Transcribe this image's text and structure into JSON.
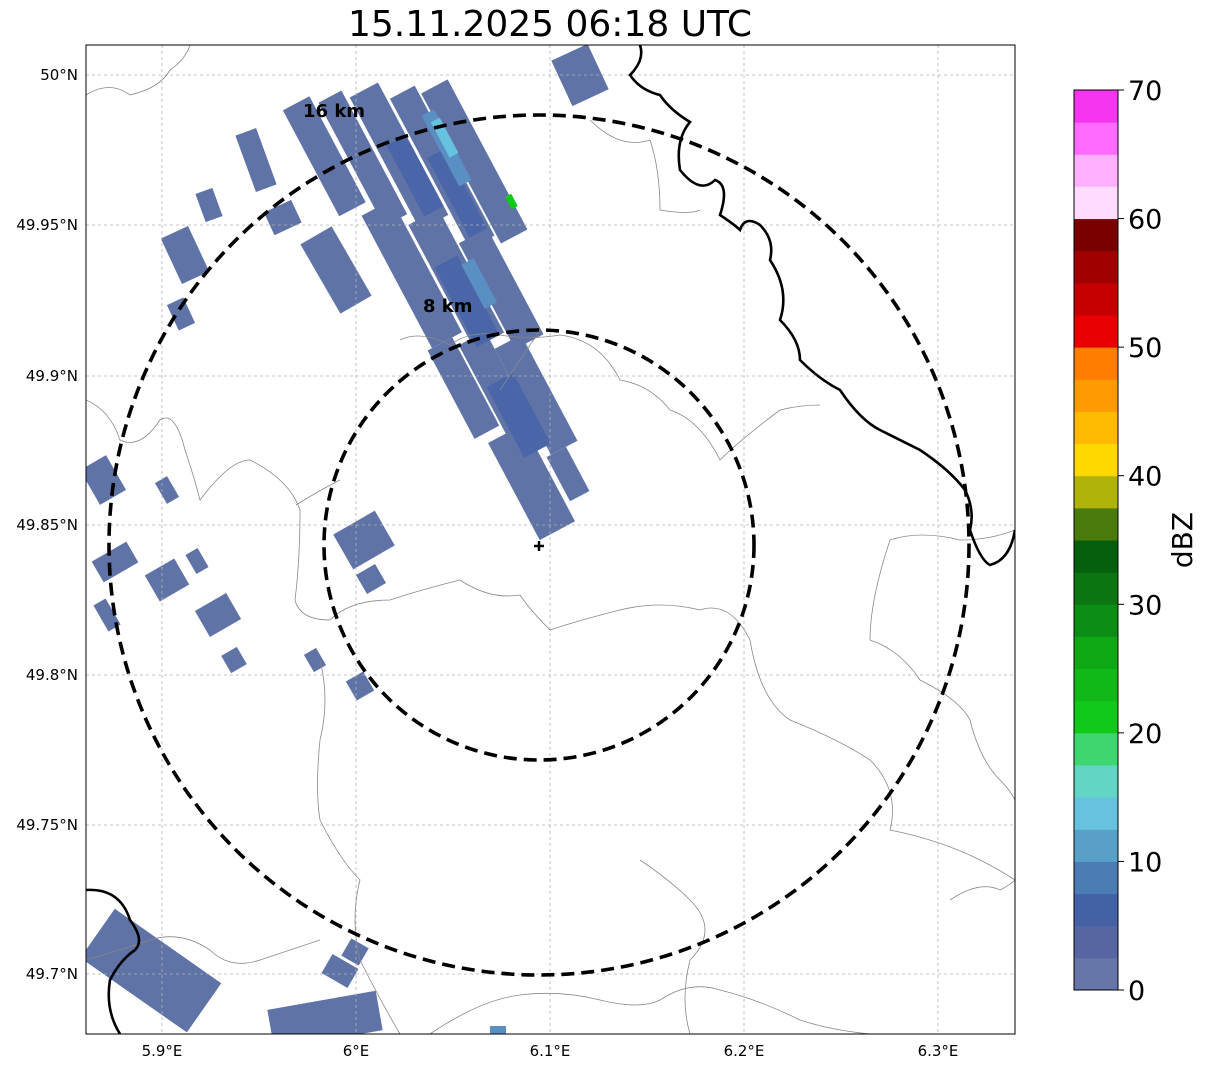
{
  "title": "15.11.2025 06:18 UTC",
  "map": {
    "x_ticks": [
      "5.9°E",
      "6°E",
      "6.1°E",
      "6.2°E",
      "6.3°E"
    ],
    "y_ticks": [
      "50°N",
      "49.95°N",
      "49.9°N",
      "49.85°N",
      "49.8°N",
      "49.75°N",
      "49.7°N"
    ],
    "lon_range": [
      5.86,
      6.34
    ],
    "lat_range": [
      49.68,
      50.01
    ],
    "radar_site": {
      "lon": 6.095,
      "lat": 49.843
    },
    "rings": [
      {
        "label": "8 km",
        "radius_km": 8
      },
      {
        "label": "16 km",
        "radius_km": 16
      }
    ],
    "border_color": "#000000",
    "admin_line_color": "#888888",
    "grid": true
  },
  "colorbar": {
    "label": "dBZ",
    "ticks": [
      "0",
      "10",
      "20",
      "30",
      "40",
      "50",
      "60",
      "70"
    ],
    "colors": [
      "#6676a8",
      "#5566a0",
      "#4461a6",
      "#4b7cb3",
      "#58a0c8",
      "#66c2de",
      "#63d5c5",
      "#3ed66e",
      "#10c918",
      "#10b918",
      "#0fa815",
      "#0c8e15",
      "#0b7512",
      "#055f0c",
      "#4a7a0b",
      "#b1b20a",
      "#ffd800",
      "#ffba00",
      "#ff9b00",
      "#ff7d00",
      "#e80000",
      "#c60000",
      "#a10000",
      "#780000",
      "#ffdcff",
      "#ffb1ff",
      "#ff6bff",
      "#f535f0"
    ]
  },
  "echo_colors": {
    "weak": "#5f73a6",
    "moderate": "#4a66a8",
    "medium": "#5a8fc4",
    "strong": "#66c2de",
    "core": "#10c918"
  }
}
